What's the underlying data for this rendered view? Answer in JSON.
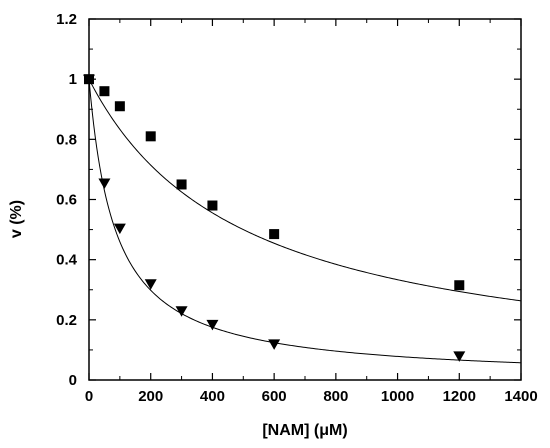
{
  "chart_data": {
    "type": "scatter",
    "title": "",
    "xlabel": "[NAM] (μM)",
    "ylabel": "v (%)",
    "xlim": [
      0,
      1400
    ],
    "ylim": [
      0,
      1.2
    ],
    "x_ticks": [
      0,
      200,
      400,
      600,
      800,
      1000,
      1200,
      1400
    ],
    "y_ticks": [
      0,
      0.2,
      0.4,
      0.6,
      0.8,
      1,
      1.2
    ],
    "x_tick_labels": [
      "0",
      "200",
      "400",
      "600",
      "800",
      "1000",
      "1200",
      "1400"
    ],
    "y_tick_labels": [
      "0",
      "0.2",
      "0.4",
      "0.6",
      "0.8",
      "1",
      "1.2"
    ],
    "grid": false,
    "legend": "none",
    "series": [
      {
        "marker": "square",
        "x": [
          0,
          50,
          100,
          200,
          300,
          400,
          600,
          1200
        ],
        "y": [
          1.0,
          0.96,
          0.91,
          0.81,
          0.65,
          0.58,
          0.485,
          0.315
        ],
        "fit": {
          "model": "hyperbolic",
          "ic50": 500
        }
      },
      {
        "marker": "triangle-down",
        "x": [
          0,
          50,
          100,
          200,
          300,
          400,
          600,
          1200
        ],
        "y": [
          1.0,
          0.655,
          0.505,
          0.32,
          0.23,
          0.185,
          0.12,
          0.08
        ],
        "fit": {
          "model": "hyperbolic",
          "ic50": 85
        }
      }
    ],
    "colors": {
      "marks": "#000000",
      "background": "#ffffff"
    }
  }
}
